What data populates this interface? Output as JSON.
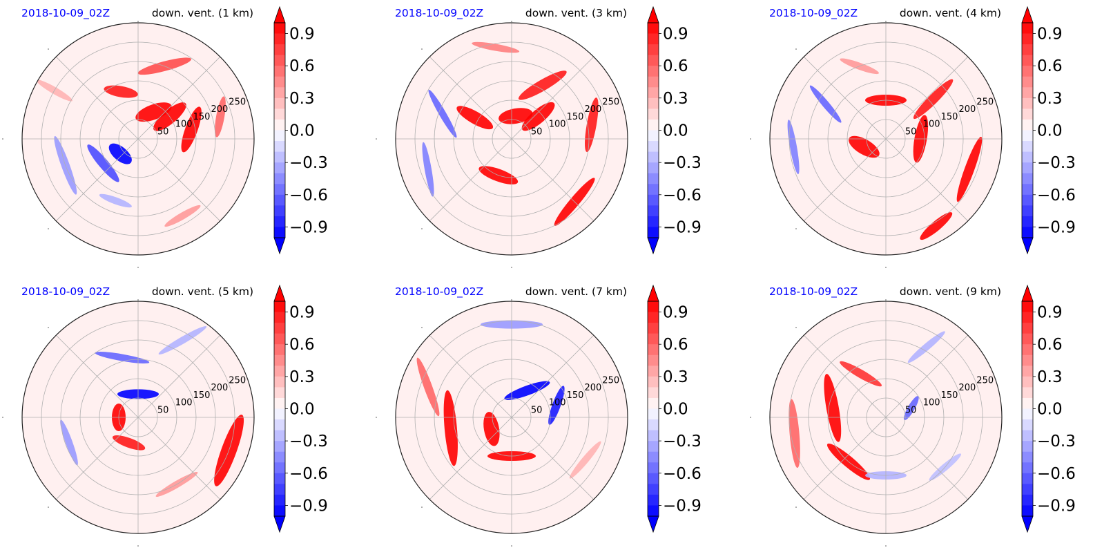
{
  "figure": {
    "panels": [
      {
        "timestamp": "2018-10-09_02Z",
        "title": "down. vent. (1 km)"
      },
      {
        "timestamp": "2018-10-09_02Z",
        "title": "down. vent. (3 km)"
      },
      {
        "timestamp": "2018-10-09_02Z",
        "title": "down. vent. (4 km)"
      },
      {
        "timestamp": "2018-10-09_02Z",
        "title": "down. vent. (5 km)"
      },
      {
        "timestamp": "2018-10-09_02Z",
        "title": "down. vent. (7 km)"
      },
      {
        "timestamp": "2018-10-09_02Z",
        "title": "down. vent. (9 km)"
      }
    ],
    "colors": {
      "timestamp": "#0000ff",
      "title": "#000000",
      "positive": "#ff0000",
      "negative": "#0000ff",
      "neutral": "#ffffff",
      "grid": "#b0b0b0"
    }
  },
  "chart_data": {
    "type": "heatmap",
    "projection": "polar",
    "variable": "down. vent.",
    "valid_time": "2018-10-09_02Z",
    "levels_km": [
      1,
      3,
      4,
      5,
      7,
      9
    ],
    "radial_ticks": [
      "50",
      "100",
      "150",
      "200",
      "250"
    ],
    "radial_tick_values": [
      50,
      100,
      150,
      200,
      250
    ],
    "rmax": 300,
    "colorbar": {
      "cmap": "bwr",
      "vmin": -1.0,
      "vmax": 1.0,
      "extend": "both",
      "ticks": [
        0.9,
        0.6,
        0.3,
        0.0,
        -0.3,
        -0.6,
        -0.9
      ],
      "tick_labels": [
        "0.9",
        "0.6",
        "0.3",
        "0.0",
        "−0.3",
        "−0.6",
        "−0.9"
      ]
    },
    "grid": true,
    "panel_features": [
      {
        "level_km": 1,
        "features": [
          {
            "r": 80,
            "theta": 60,
            "w": 55,
            "h": 22,
            "rot": -20,
            "v": 1.0
          },
          {
            "r": 100,
            "theta": 35,
            "w": 60,
            "h": 20,
            "rot": -40,
            "v": 1.0
          },
          {
            "r": 140,
            "theta": 10,
            "w": 70,
            "h": 18,
            "rot": -70,
            "v": 1.0
          },
          {
            "r": 130,
            "theta": 110,
            "w": 50,
            "h": 16,
            "rot": 10,
            "v": 0.9
          },
          {
            "r": 200,
            "theta": 70,
            "w": 80,
            "h": 14,
            "rot": -15,
            "v": 0.7
          },
          {
            "r": 220,
            "theta": 15,
            "w": 60,
            "h": 12,
            "rot": -80,
            "v": 0.6
          },
          {
            "r": 60,
            "theta": 220,
            "w": 40,
            "h": 20,
            "rot": 40,
            "v": -1.0
          },
          {
            "r": 110,
            "theta": 215,
            "w": 70,
            "h": 14,
            "rot": 50,
            "v": -0.7
          },
          {
            "r": 200,
            "theta": 200,
            "w": 90,
            "h": 12,
            "rot": 70,
            "v": -0.4
          },
          {
            "r": 250,
            "theta": 150,
            "w": 60,
            "h": 10,
            "rot": 30,
            "v": 0.3
          },
          {
            "r": 230,
            "theta": 300,
            "w": 60,
            "h": 10,
            "rot": -30,
            "v": 0.4
          },
          {
            "r": 170,
            "theta": 250,
            "w": 50,
            "h": 10,
            "rot": 20,
            "v": -0.3
          }
        ]
      },
      {
        "level_km": 3,
        "features": [
          {
            "r": 60,
            "theta": 80,
            "w": 50,
            "h": 22,
            "rot": -10,
            "v": 1.0
          },
          {
            "r": 90,
            "theta": 40,
            "w": 60,
            "h": 20,
            "rot": -40,
            "v": 1.0
          },
          {
            "r": 110,
            "theta": 150,
            "w": 60,
            "h": 18,
            "rot": 30,
            "v": 1.0
          },
          {
            "r": 100,
            "theta": 250,
            "w": 60,
            "h": 18,
            "rot": 20,
            "v": 1.0
          },
          {
            "r": 160,
            "theta": 60,
            "w": 80,
            "h": 16,
            "rot": -30,
            "v": 0.9
          },
          {
            "r": 210,
            "theta": 10,
            "w": 80,
            "h": 14,
            "rot": -80,
            "v": 0.9
          },
          {
            "r": 230,
            "theta": 315,
            "w": 90,
            "h": 14,
            "rot": -50,
            "v": 1.0
          },
          {
            "r": 190,
            "theta": 160,
            "w": 80,
            "h": 10,
            "rot": 60,
            "v": -0.6
          },
          {
            "r": 230,
            "theta": 200,
            "w": 80,
            "h": 10,
            "rot": 80,
            "v": -0.5
          },
          {
            "r": 240,
            "theta": 100,
            "w": 70,
            "h": 10,
            "rot": 10,
            "v": 0.5
          }
        ]
      },
      {
        "level_km": 4,
        "features": [
          {
            "r": 60,
            "theta": 200,
            "w": 50,
            "h": 22,
            "rot": 30,
            "v": 1.0
          },
          {
            "r": 90,
            "theta": 0,
            "w": 70,
            "h": 18,
            "rot": -80,
            "v": 1.0
          },
          {
            "r": 100,
            "theta": 90,
            "w": 60,
            "h": 16,
            "rot": 0,
            "v": 1.0
          },
          {
            "r": 160,
            "theta": 40,
            "w": 80,
            "h": 14,
            "rot": -45,
            "v": 0.9
          },
          {
            "r": 230,
            "theta": 340,
            "w": 100,
            "h": 14,
            "rot": -70,
            "v": 1.0
          },
          {
            "r": 260,
            "theta": 300,
            "w": 60,
            "h": 14,
            "rot": -40,
            "v": 1.0
          },
          {
            "r": 180,
            "theta": 150,
            "w": 70,
            "h": 10,
            "rot": 50,
            "v": -0.6
          },
          {
            "r": 240,
            "theta": 185,
            "w": 80,
            "h": 10,
            "rot": 80,
            "v": -0.5
          },
          {
            "r": 200,
            "theta": 110,
            "w": 60,
            "h": 10,
            "rot": 20,
            "v": 0.4
          }
        ]
      },
      {
        "level_km": 5,
        "features": [
          {
            "r": 50,
            "theta": 180,
            "w": 40,
            "h": 20,
            "rot": 90,
            "v": 1.0
          },
          {
            "r": 60,
            "theta": 90,
            "w": 60,
            "h": 14,
            "rot": 0,
            "v": -1.0
          },
          {
            "r": 70,
            "theta": 250,
            "w": 50,
            "h": 14,
            "rot": 20,
            "v": 0.9
          },
          {
            "r": 160,
            "theta": 105,
            "w": 80,
            "h": 10,
            "rot": 10,
            "v": -0.6
          },
          {
            "r": 190,
            "theta": 200,
            "w": 70,
            "h": 10,
            "rot": 70,
            "v": -0.4
          },
          {
            "r": 250,
            "theta": 340,
            "w": 110,
            "h": 22,
            "rot": -70,
            "v": 1.0
          },
          {
            "r": 200,
            "theta": 300,
            "w": 70,
            "h": 10,
            "rot": -30,
            "v": 0.4
          },
          {
            "r": 230,
            "theta": 60,
            "w": 80,
            "h": 10,
            "rot": -30,
            "v": -0.3
          }
        ]
      },
      {
        "level_km": 7,
        "features": [
          {
            "r": 60,
            "theta": 210,
            "w": 50,
            "h": 22,
            "rot": 80,
            "v": 1.0
          },
          {
            "r": 160,
            "theta": 190,
            "w": 110,
            "h": 18,
            "rot": 85,
            "v": 1.0
          },
          {
            "r": 80,
            "theta": 60,
            "w": 70,
            "h": 14,
            "rot": -20,
            "v": -1.0
          },
          {
            "r": 100,
            "theta": 270,
            "w": 70,
            "h": 14,
            "rot": 0,
            "v": 1.0
          },
          {
            "r": 120,
            "theta": 15,
            "w": 60,
            "h": 12,
            "rot": -70,
            "v": -0.9
          },
          {
            "r": 230,
            "theta": 160,
            "w": 90,
            "h": 12,
            "rot": 70,
            "v": 0.6
          },
          {
            "r": 240,
            "theta": 90,
            "w": 90,
            "h": 12,
            "rot": 0,
            "v": -0.4
          },
          {
            "r": 220,
            "theta": 330,
            "w": 70,
            "h": 10,
            "rot": -50,
            "v": 0.3
          }
        ]
      },
      {
        "level_km": 9,
        "features": [
          {
            "r": 140,
            "theta": 170,
            "w": 100,
            "h": 18,
            "rot": 80,
            "v": 1.0
          },
          {
            "r": 150,
            "theta": 230,
            "w": 80,
            "h": 16,
            "rot": 40,
            "v": 1.0
          },
          {
            "r": 130,
            "theta": 120,
            "w": 70,
            "h": 12,
            "rot": 30,
            "v": 0.8
          },
          {
            "r": 240,
            "theta": 190,
            "w": 100,
            "h": 14,
            "rot": 85,
            "v": 0.6
          },
          {
            "r": 70,
            "theta": 20,
            "w": 40,
            "h": 10,
            "rot": -60,
            "v": -0.6
          },
          {
            "r": 150,
            "theta": 270,
            "w": 60,
            "h": 12,
            "rot": 0,
            "v": -0.3
          },
          {
            "r": 210,
            "theta": 60,
            "w": 70,
            "h": 10,
            "rot": -40,
            "v": -0.3
          },
          {
            "r": 200,
            "theta": 320,
            "w": 60,
            "h": 10,
            "rot": -40,
            "v": -0.25
          }
        ]
      }
    ]
  }
}
